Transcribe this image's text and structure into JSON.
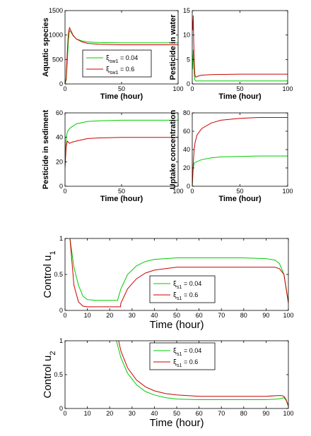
{
  "colors": {
    "series_a": "#00cc00",
    "series_b": "#cc0000",
    "axis": "#000000"
  },
  "chart_data": [
    {
      "type": "line",
      "xlabel": "Time (hour)",
      "ylabel": "Aquatic species",
      "xlim": [
        0,
        100
      ],
      "ylim": [
        0,
        1500
      ],
      "xticks": [
        0,
        50,
        100
      ],
      "yticks": [
        0,
        500,
        1000,
        1500
      ],
      "legend": {
        "placement": "center-right",
        "entries": [
          {
            "symbol": "ξ",
            "sub": "sw1",
            "text": " = 0.04"
          },
          {
            "symbol": "ξ",
            "sub": "sw1",
            "text": " = 0.6"
          }
        ]
      },
      "series": [
        {
          "color": "#00cc00",
          "x": [
            0,
            1,
            2,
            3,
            4,
            5,
            7,
            10,
            15,
            20,
            30,
            50,
            70,
            100
          ],
          "y": [
            0,
            80,
            450,
            900,
            1090,
            1070,
            990,
            920,
            880,
            860,
            845,
            840,
            840,
            840
          ]
        },
        {
          "color": "#cc0000",
          "x": [
            0,
            1,
            2,
            3,
            4,
            5,
            7,
            10,
            15,
            20,
            30,
            50,
            70,
            100
          ],
          "y": [
            0,
            120,
            650,
            1050,
            1150,
            1100,
            1000,
            920,
            860,
            830,
            810,
            800,
            800,
            800
          ]
        }
      ]
    },
    {
      "type": "line",
      "xlabel": "Time (hour)",
      "ylabel": "Pesticide in water",
      "xlim": [
        0,
        100
      ],
      "ylim": [
        0,
        15
      ],
      "xticks": [
        0,
        50,
        100
      ],
      "yticks": [
        0,
        5,
        10,
        15
      ],
      "series": [
        {
          "color": "#00cc00",
          "x": [
            0,
            0.5,
            1,
            1.5,
            2,
            2.5,
            3,
            4,
            6,
            10,
            20,
            50,
            100
          ],
          "y": [
            6,
            3,
            7,
            5,
            2.5,
            1,
            0.7,
            0.6,
            0.6,
            0.6,
            0.6,
            0.6,
            0.6
          ]
        },
        {
          "color": "#cc0000",
          "x": [
            0,
            0.5,
            1,
            1.5,
            2,
            2.5,
            3,
            4,
            6,
            10,
            20,
            50,
            100
          ],
          "y": [
            13,
            11,
            14,
            9,
            5,
            2.5,
            1.5,
            1.4,
            1.6,
            1.8,
            1.9,
            2.0,
            2.0
          ]
        }
      ]
    },
    {
      "type": "line",
      "xlabel": "Time (hour)",
      "ylabel": "Pesticide in sediment",
      "xlim": [
        0,
        100
      ],
      "ylim": [
        0,
        60
      ],
      "xticks": [
        0,
        50,
        100
      ],
      "yticks": [
        0,
        20,
        40,
        60
      ],
      "series": [
        {
          "color": "#00cc00",
          "x": [
            0,
            1,
            2,
            3,
            5,
            10,
            20,
            30,
            50,
            70,
            100
          ],
          "y": [
            24,
            40,
            44,
            46,
            48,
            51,
            53,
            53.5,
            54,
            54,
            54
          ]
        },
        {
          "color": "#cc0000",
          "x": [
            0,
            1,
            2,
            3,
            4,
            6,
            10,
            20,
            30,
            50,
            70,
            100
          ],
          "y": [
            15,
            32,
            37,
            36,
            35,
            36,
            37,
            39,
            39.5,
            40,
            40,
            40
          ]
        }
      ]
    },
    {
      "type": "line",
      "xlabel": "Time (hour)",
      "ylabel": "Uptake concentration",
      "xlim": [
        0,
        100
      ],
      "ylim": [
        0,
        80
      ],
      "xticks": [
        0,
        50,
        100
      ],
      "yticks": [
        0,
        20,
        40,
        60,
        80
      ],
      "series": [
        {
          "color": "#00cc00",
          "x": [
            0,
            1,
            2,
            3,
            5,
            10,
            20,
            30,
            50,
            70,
            100
          ],
          "y": [
            0,
            20,
            25,
            26,
            27,
            29,
            31,
            32,
            32.5,
            33,
            33
          ]
        },
        {
          "color": "#cc0000",
          "x": [
            0,
            1,
            2,
            3,
            5,
            10,
            20,
            30,
            50,
            70,
            100
          ],
          "y": [
            0,
            25,
            40,
            48,
            56,
            63,
            69,
            72,
            74,
            75,
            75
          ]
        }
      ]
    },
    {
      "type": "line",
      "xlabel": "Time (hour)",
      "ylabel": "Control u",
      "ylabel_sub": "1",
      "xlim": [
        0,
        100
      ],
      "ylim": [
        0,
        1
      ],
      "xticks": [
        0,
        10,
        20,
        30,
        40,
        50,
        60,
        70,
        80,
        90,
        100
      ],
      "yticks": [
        0,
        0.5,
        1
      ],
      "legend": {
        "placement": "lower-right",
        "entries": [
          {
            "symbol": "ξ",
            "sub": "s1",
            "text": " = 0.04"
          },
          {
            "symbol": "ξ",
            "sub": "s1",
            "text": " = 0.6"
          }
        ]
      },
      "series": [
        {
          "color": "#00cc00",
          "x": [
            2.2,
            4,
            6,
            8,
            10,
            14,
            18,
            23.5,
            25,
            28,
            32,
            36,
            40,
            45,
            50,
            60,
            70,
            80,
            90,
            94,
            96,
            98,
            100
          ],
          "y": [
            1,
            0.6,
            0.35,
            0.2,
            0.15,
            0.14,
            0.14,
            0.14,
            0.3,
            0.5,
            0.62,
            0.68,
            0.71,
            0.72,
            0.73,
            0.73,
            0.73,
            0.73,
            0.72,
            0.7,
            0.65,
            0.5,
            0.12
          ]
        },
        {
          "color": "#cc0000",
          "x": [
            2.2,
            4,
            6,
            8,
            10,
            14,
            18,
            22,
            24.8,
            25,
            28,
            32,
            36,
            40,
            45,
            50,
            60,
            70,
            80,
            90,
            94,
            96,
            98,
            100
          ],
          "y": [
            1,
            0.35,
            0.12,
            0.06,
            0.05,
            0.05,
            0.05,
            0.05,
            0.05,
            0.1,
            0.3,
            0.44,
            0.52,
            0.56,
            0.58,
            0.6,
            0.6,
            0.6,
            0.6,
            0.6,
            0.6,
            0.58,
            0.5,
            0.1
          ]
        }
      ]
    },
    {
      "type": "line",
      "xlabel": "Time (hour)",
      "ylabel": "Control u",
      "ylabel_sub": "2",
      "xlim": [
        0,
        100
      ],
      "ylim": [
        0,
        1
      ],
      "xticks": [
        0,
        10,
        20,
        30,
        40,
        50,
        60,
        70,
        80,
        90,
        100
      ],
      "yticks": [
        0,
        0.5,
        1
      ],
      "legend": {
        "placement": "top-center",
        "entries": [
          {
            "symbol": "ξ",
            "sub": "s1",
            "text": " = 0.04"
          },
          {
            "symbol": "ξ",
            "sub": "s1",
            "text": " = 0.6"
          }
        ]
      },
      "series": [
        {
          "color": "#00cc00",
          "x": [
            23,
            25,
            28,
            32,
            36,
            40,
            45,
            50,
            60,
            70,
            80,
            90,
            95,
            97,
            98,
            99,
            100
          ],
          "y": [
            1,
            0.75,
            0.52,
            0.35,
            0.25,
            0.2,
            0.16,
            0.14,
            0.13,
            0.13,
            0.13,
            0.13,
            0.14,
            0.15,
            0.16,
            0.12,
            0.03
          ]
        },
        {
          "color": "#cc0000",
          "x": [
            24,
            25,
            28,
            32,
            36,
            40,
            45,
            50,
            60,
            70,
            80,
            90,
            95,
            97,
            98,
            99,
            100
          ],
          "y": [
            1,
            0.85,
            0.6,
            0.42,
            0.32,
            0.26,
            0.22,
            0.2,
            0.18,
            0.18,
            0.18,
            0.18,
            0.19,
            0.19,
            0.18,
            0.13,
            0.04
          ]
        }
      ]
    }
  ]
}
